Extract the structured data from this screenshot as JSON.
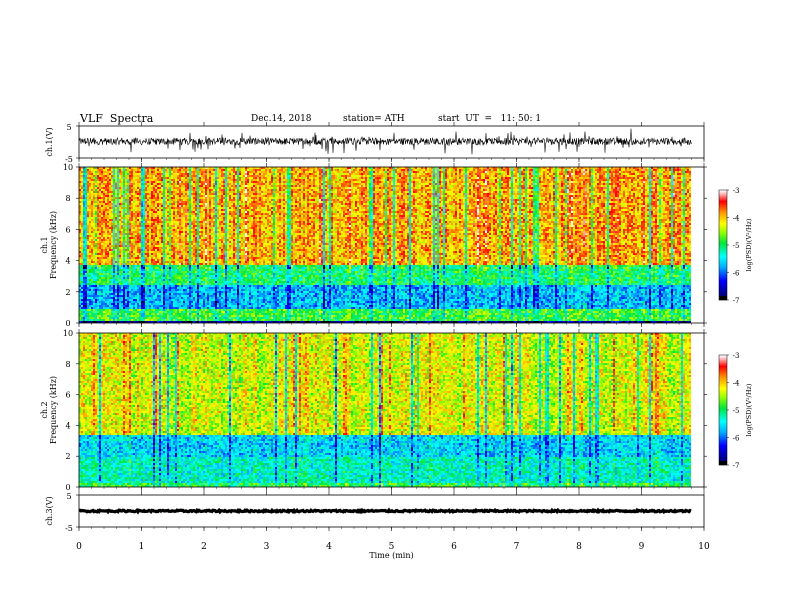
{
  "header": {
    "title": "VLF  Spectra",
    "date": "Dec.14, 2018",
    "station": "station= ATH",
    "start": "start  UT  =   11: 50: 1"
  },
  "chart_data": [
    {
      "type": "line",
      "panel": "ch1-waveform",
      "ylabel": "ch.1(V)",
      "ylim": [
        -5,
        5
      ],
      "yticks": [
        "5",
        "-5"
      ],
      "xlim": [
        0,
        10
      ],
      "x_end": 9.8,
      "baseline": 0.2,
      "color": "#000000"
    },
    {
      "type": "heatmap",
      "panel": "ch1-spectrogram",
      "ylabel": "ch.1\nFrequency  (kHz)",
      "ylim": [
        0,
        10
      ],
      "yticks": [
        "0",
        "2",
        "4",
        "6",
        "8",
        "10"
      ],
      "xlim": [
        0,
        10
      ],
      "x_end": 9.8,
      "colorbar": {
        "label": "log(PSD)(V²/Hz)",
        "range": [
          -7,
          -3
        ],
        "ticks": [
          "-3",
          "-4",
          "-5",
          "-6",
          "-7"
        ]
      },
      "bands": [
        {
          "f": [
            3.8,
            10.0
          ],
          "level": -3.9
        },
        {
          "f": [
            2.5,
            3.8
          ],
          "level": -5.0
        },
        {
          "f": [
            1.0,
            2.5
          ],
          "level": -5.7
        },
        {
          "f": [
            0.2,
            1.0
          ],
          "level": -4.8
        },
        {
          "f": [
            0.0,
            0.2
          ],
          "level": -6.6
        }
      ]
    },
    {
      "type": "heatmap",
      "panel": "ch2-spectrogram",
      "ylabel": "ch.2\nFrequency  (kHz)",
      "ylim": [
        0,
        10
      ],
      "yticks": [
        "0",
        "2",
        "4",
        "6",
        "8",
        "10"
      ],
      "xlim": [
        0,
        10
      ],
      "x_end": 9.8,
      "colorbar": {
        "label": "log(PSD)(V²/Hz)",
        "range": [
          -7,
          -3
        ],
        "ticks": [
          "-3",
          "-4",
          "-5",
          "-6",
          "-7"
        ]
      },
      "bands": [
        {
          "f": [
            3.5,
            10.0
          ],
          "level": -4.3
        },
        {
          "f": [
            2.0,
            3.5
          ],
          "level": -5.6
        },
        {
          "f": [
            0.3,
            2.0
          ],
          "level": -5.3
        },
        {
          "f": [
            0.0,
            0.3
          ],
          "level": -4.9
        }
      ]
    },
    {
      "type": "line",
      "panel": "ch3-waveform",
      "ylabel": "ch.3(V)",
      "ylim": [
        -5,
        5
      ],
      "yticks": [
        "5",
        "-5"
      ],
      "xlim": [
        0,
        10
      ],
      "x_end": 9.8,
      "baseline": 0.0,
      "color": "#000000"
    }
  ],
  "xaxis": {
    "label": "Time  (min)",
    "ticks": [
      "0",
      "1",
      "2",
      "3",
      "4",
      "5",
      "6",
      "7",
      "8",
      "9",
      "10"
    ]
  }
}
